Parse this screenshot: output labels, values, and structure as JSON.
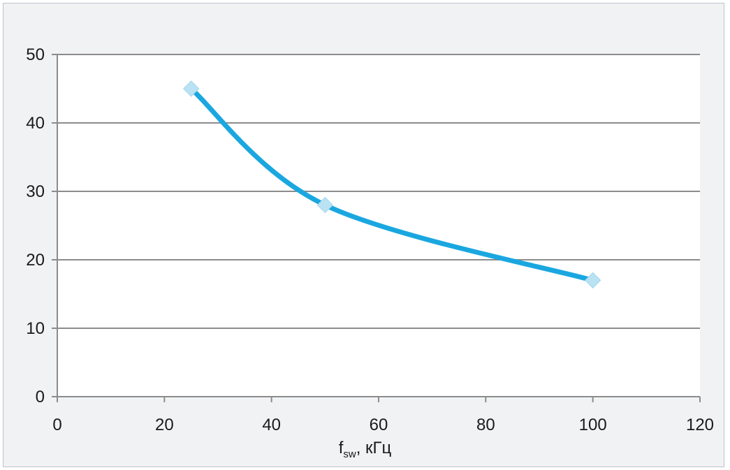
{
  "chart_data": {
    "type": "line",
    "title": "",
    "xlabel": {
      "main": "f",
      "sub": "sw",
      "rest": ", кГц"
    },
    "ylabel": "",
    "xlim": [
      0,
      120
    ],
    "ylim": [
      0,
      50
    ],
    "xticks": [
      0,
      20,
      40,
      60,
      80,
      100,
      120
    ],
    "yticks": [
      0,
      10,
      20,
      30,
      40,
      50
    ],
    "grid": "horizontal",
    "legend": "none",
    "smooth": true,
    "series": [
      {
        "x": [
          25,
          50,
          100
        ],
        "y": [
          45,
          28,
          17
        ]
      }
    ],
    "colors": {
      "line": "#1aa7e0",
      "marker": "#b9e2f3",
      "grid": "#8c8c8c",
      "axis": "#8c8c8c",
      "frame_bg": "#f1f2f4"
    }
  }
}
